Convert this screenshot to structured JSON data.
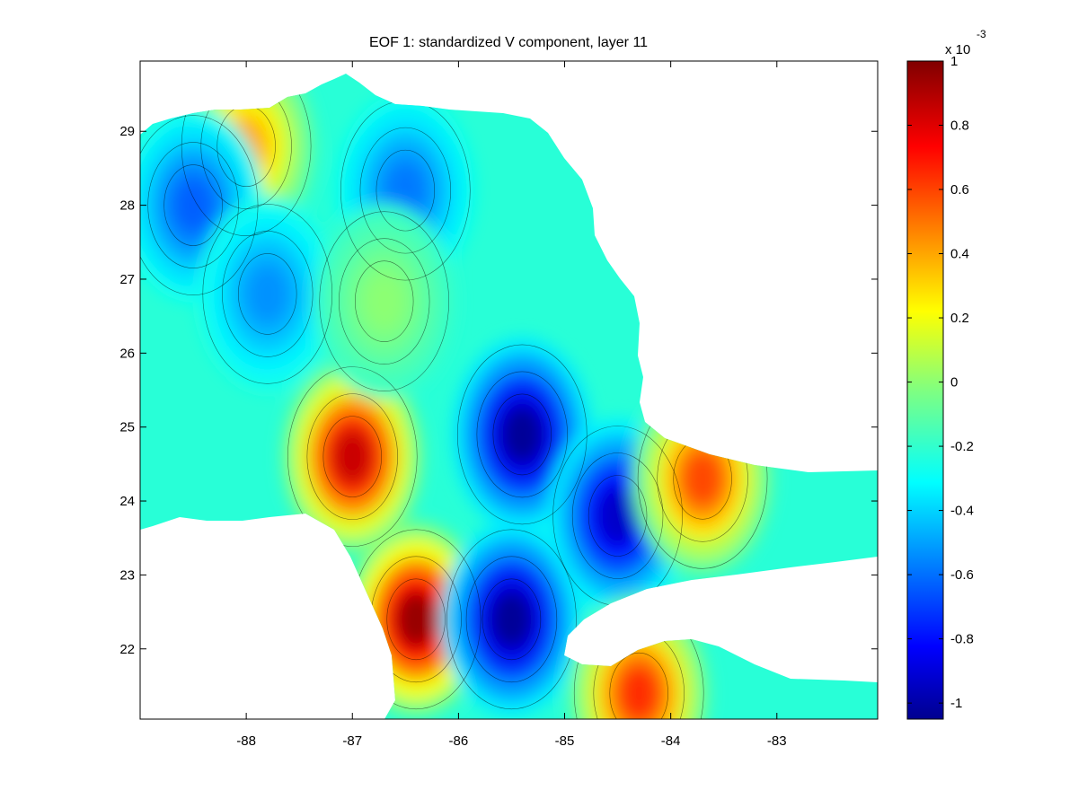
{
  "chart_data": {
    "type": "heatmap",
    "title": "EOF 1: standardized V component, layer 11",
    "xlabel": "",
    "ylabel": "",
    "xlim": [
      -89,
      -82.05
    ],
    "ylim": [
      21.05,
      29.95
    ],
    "x_ticks": [
      -88,
      -87,
      -86,
      -85,
      -84,
      -83
    ],
    "x_tick_labels": [
      "-88",
      "-87",
      "-86",
      "-85",
      "-84",
      "-83"
    ],
    "y_ticks": [
      22,
      23,
      24,
      25,
      26,
      27,
      28,
      29
    ],
    "y_tick_labels": [
      "22",
      "23",
      "24",
      "25",
      "26",
      "27",
      "28",
      "29"
    ],
    "colorbar": {
      "colormap": "jet",
      "range": [
        -1.05,
        1.0
      ],
      "exponent_label": "x 10",
      "exponent_power": "-3",
      "ticks": [
        -1,
        -0.8,
        -0.6,
        -0.4,
        -0.2,
        0,
        0.2,
        0.4,
        0.6,
        0.8,
        1
      ],
      "tick_labels": [
        "-1",
        "-0.8",
        "-0.6",
        "-0.4",
        "-0.2",
        "0",
        "0.2",
        "0.4",
        "0.6",
        "0.8",
        "1"
      ]
    },
    "field_features": [
      {
        "name": "strong positive core west",
        "lon": -87.0,
        "lat": 24.6,
        "value": 0.85
      },
      {
        "name": "positive tongue south",
        "lon": -86.4,
        "lat": 22.4,
        "value": 0.95
      },
      {
        "name": "negative core center",
        "lon": -85.4,
        "lat": 24.9,
        "value": -1.0
      },
      {
        "name": "negative core south",
        "lon": -85.5,
        "lat": 22.4,
        "value": -1.0
      },
      {
        "name": "negative lobe east",
        "lon": -84.5,
        "lat": 23.8,
        "value": -0.9
      },
      {
        "name": "positive band florida straits",
        "lon": -83.7,
        "lat": 24.3,
        "value": 0.6
      },
      {
        "name": "positive patch northwest",
        "lon": -88.0,
        "lat": 28.8,
        "value": 0.4
      },
      {
        "name": "negative patch north",
        "lon": -86.5,
        "lat": 28.2,
        "value": -0.55
      },
      {
        "name": "negative patch northwest",
        "lon": -88.5,
        "lat": 28.0,
        "value": -0.6
      },
      {
        "name": "negative patch west",
        "lon": -87.8,
        "lat": 26.8,
        "value": -0.5
      },
      {
        "name": "positive patch cuba coast",
        "lon": -84.3,
        "lat": 21.4,
        "value": 0.65
      },
      {
        "name": "near-zero band central",
        "lon": -86.7,
        "lat": 26.7,
        "value": 0.0
      }
    ]
  }
}
